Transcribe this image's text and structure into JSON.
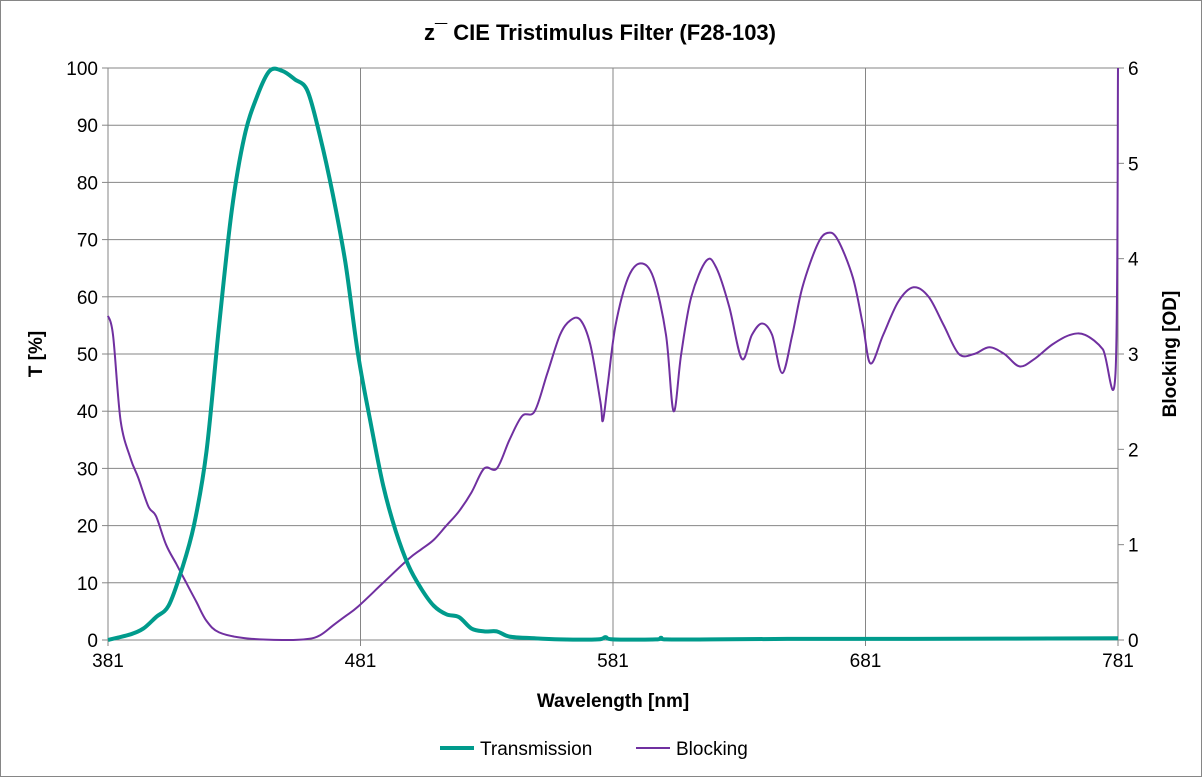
{
  "chart_data": {
    "type": "line",
    "title": "z¯ CIE Tristimulus Filter (F28-103)",
    "xlabel": "Wavelength [nm]",
    "ylabel": "T [%]",
    "y2label": "Blocking [OD]",
    "xlim": [
      381,
      781
    ],
    "ylim": [
      0,
      100
    ],
    "y2lim": [
      0,
      6
    ],
    "xticks": [
      "381",
      "481",
      "581",
      "681",
      "781"
    ],
    "yticks": [
      "0",
      "10",
      "20",
      "30",
      "40",
      "50",
      "60",
      "70",
      "80",
      "90",
      "100"
    ],
    "y2ticks": [
      "0",
      "1",
      "2",
      "3",
      "4",
      "5",
      "6"
    ],
    "grid": true,
    "legend_position": "bottom",
    "series": [
      {
        "name": "Transmission",
        "axis": "left",
        "color": "#009B8C",
        "x": [
          381,
          390,
          395,
          400,
          405,
          410,
          415,
          420,
          425,
          430,
          435,
          440,
          445,
          450,
          455,
          460,
          465,
          470,
          475,
          480,
          485,
          490,
          495,
          500,
          505,
          510,
          515,
          520,
          525,
          530,
          535,
          540,
          550,
          560,
          575,
          578,
          581,
          598,
          600,
          602,
          620,
          650,
          700,
          781
        ],
        "y": [
          0,
          1,
          2,
          4,
          6,
          12,
          20,
          33,
          55,
          75,
          88,
          95,
          99.5,
          99.5,
          98,
          96,
          88,
          78,
          66,
          50,
          38,
          27,
          19,
          13,
          9,
          6,
          4.5,
          4,
          2,
          1.5,
          1.5,
          0.6,
          0.3,
          0.1,
          0.1,
          0.5,
          0.1,
          0.1,
          0.4,
          0.1,
          0.1,
          0.2,
          0.2,
          0.3
        ]
      },
      {
        "name": "Blocking",
        "axis": "right",
        "color": "#7030A0",
        "x": [
          381,
          383,
          386,
          390,
          393,
          397,
          400,
          404,
          408,
          412,
          416,
          420,
          425,
          435,
          450,
          460,
          465,
          470,
          475,
          480,
          490,
          500,
          505,
          510,
          515,
          520,
          525,
          530,
          535,
          540,
          545,
          550,
          555,
          560,
          564,
          568,
          572,
          576,
          577,
          579,
          582,
          587,
          592,
          597,
          602,
          605,
          608,
          612,
          618,
          622,
          627,
          632,
          636,
          640,
          644,
          648,
          652,
          656,
          662,
          666,
          670,
          676,
          680,
          683,
          688,
          694,
          700,
          706,
          712,
          718,
          724,
          730,
          736,
          742,
          748,
          755,
          762,
          768,
          775,
          780,
          781
        ],
        "y": [
          3.4,
          3.2,
          2.3,
          1.9,
          1.7,
          1.4,
          1.3,
          1.0,
          0.8,
          0.6,
          0.4,
          0.2,
          0.08,
          0.02,
          0,
          0.01,
          0.05,
          0.15,
          0.25,
          0.35,
          0.6,
          0.85,
          0.95,
          1.05,
          1.2,
          1.35,
          1.55,
          1.8,
          1.8,
          2.1,
          2.35,
          2.4,
          2.8,
          3.2,
          3.35,
          3.36,
          3.1,
          2.5,
          2.3,
          2.7,
          3.3,
          3.8,
          3.95,
          3.8,
          3.2,
          2.4,
          3.0,
          3.6,
          3.98,
          3.9,
          3.5,
          2.95,
          3.2,
          3.32,
          3.2,
          2.8,
          3.2,
          3.7,
          4.15,
          4.27,
          4.2,
          3.8,
          3.3,
          2.9,
          3.2,
          3.55,
          3.7,
          3.6,
          3.3,
          3.0,
          3.0,
          3.07,
          3.0,
          2.87,
          2.95,
          3.1,
          3.2,
          3.2,
          3.05,
          2.8,
          6.0
        ]
      }
    ]
  }
}
